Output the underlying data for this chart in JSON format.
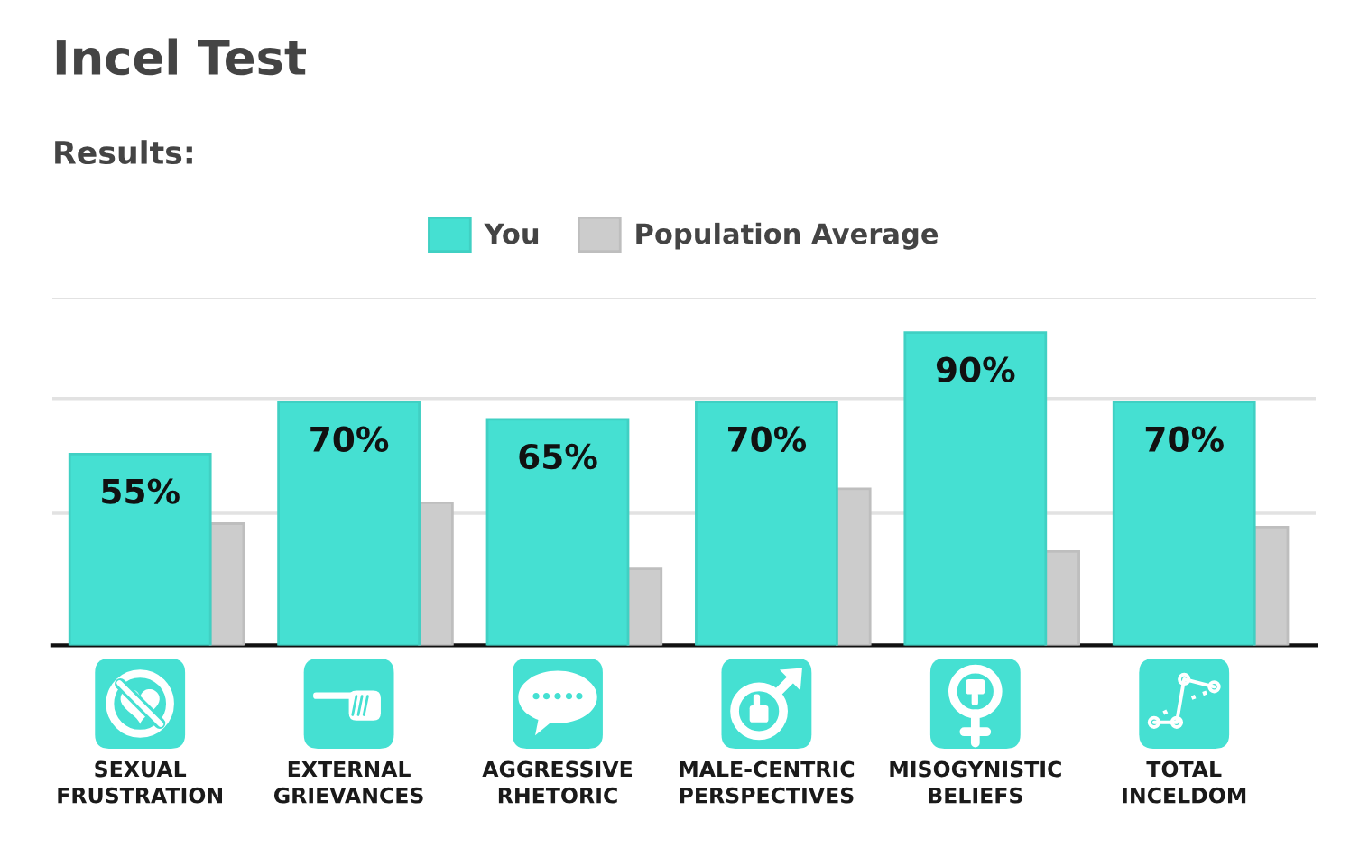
{
  "chart_data": {
    "type": "bar",
    "title": "Incel Test",
    "subtitle": "Results:",
    "categories": [
      "SEXUAL\nFRUSTRATION",
      "EXTERNAL\nGRIEVANCES",
      "AGGRESSIVE\nRHETORIC",
      "MALE-CENTRIC\nPERSPECTIVES",
      "MISOGYNISTIC\nBELIEFS",
      "TOTAL\nINCELDOM"
    ],
    "series": [
      {
        "name": "You",
        "color": "#45e0d2",
        "values": [
          55,
          70,
          65,
          70,
          90,
          70
        ],
        "value_labels": [
          "55%",
          "70%",
          "65%",
          "70%",
          "90%",
          "70%"
        ]
      },
      {
        "name": "Population Average",
        "color": "#cccccc",
        "values": [
          35,
          41,
          22,
          45,
          27,
          34
        ]
      }
    ],
    "ylim": [
      0,
      100
    ],
    "yticks": [
      {
        "value": 38,
        "label": null
      },
      {
        "value": 71,
        "label": null
      },
      {
        "value": 100,
        "label": null
      }
    ],
    "grid": "y",
    "legend": "top",
    "tick_labels": "x"
  }
}
